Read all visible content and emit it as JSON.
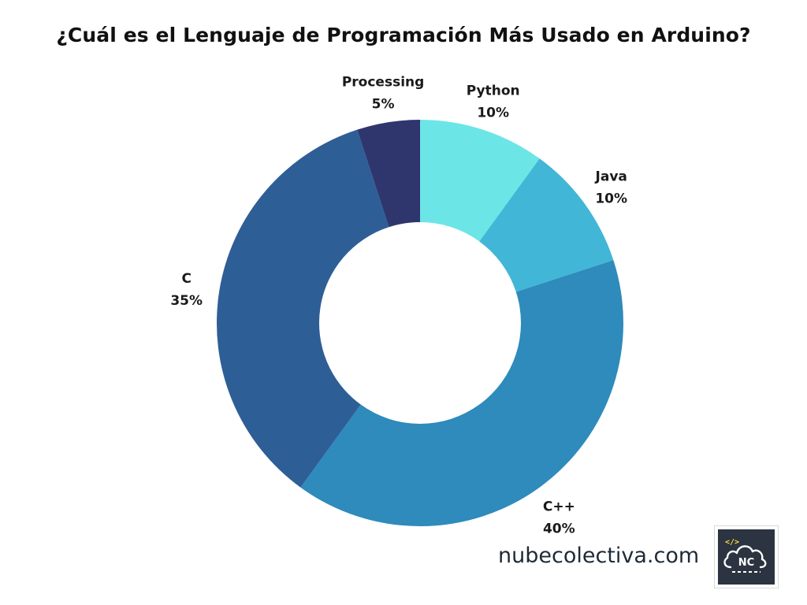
{
  "chart_data": {
    "type": "pie",
    "style": "donut",
    "title": "¿Cuál es el Lenguaje de Programación Más Usado en Arduino?",
    "unit": "%",
    "slices": [
      {
        "label": "Python",
        "value": 10,
        "value_label": "10%",
        "color": "#6ce5e6"
      },
      {
        "label": "Java",
        "value": 10,
        "value_label": "10%",
        "color": "#42b6d6"
      },
      {
        "label": "C++",
        "value": 40,
        "value_label": "40%",
        "color": "#2e8bbb"
      },
      {
        "label": "C",
        "value": 35,
        "value_label": "35%",
        "color": "#2e5e96"
      },
      {
        "label": "Processing",
        "value": 5,
        "value_label": "5%",
        "color": "#2f366e"
      }
    ],
    "start": "12 o'clock, clockwise",
    "legend": "none",
    "labels": "outside each slice"
  },
  "footer": {
    "site": "nubecolectiva.com",
    "logo_text": "NC",
    "logo_code_glyph": "</>",
    "logo_icon": "cloud-icon"
  }
}
